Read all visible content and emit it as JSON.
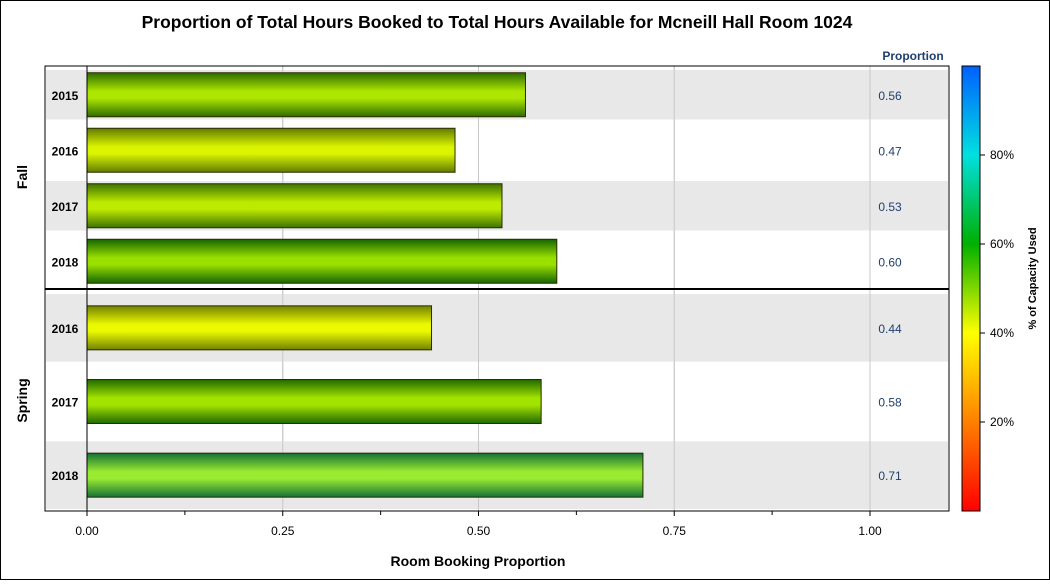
{
  "chart_data": {
    "type": "bar",
    "orientation": "horizontal",
    "title": "Proportion of Total Hours Booked to Total Hours Available for Mcneill Hall Room 1024",
    "xlabel": "Room Booking Proportion",
    "xlim": [
      0,
      1.1
    ],
    "x_ticks": [
      "0.00",
      "0.25",
      "0.50",
      "0.75",
      "1.00"
    ],
    "x_tick_values": [
      0,
      0.25,
      0.5,
      0.75,
      1.0
    ],
    "value_column_header": "Proportion",
    "grid": true,
    "panels": [
      {
        "name": "Fall",
        "categories": [
          "2015",
          "2016",
          "2017",
          "2018"
        ],
        "values": [
          0.56,
          0.47,
          0.53,
          0.6
        ],
        "value_labels": [
          "0.56",
          "0.47",
          "0.53",
          "0.60"
        ]
      },
      {
        "name": "Spring",
        "categories": [
          "2016",
          "2017",
          "2018"
        ],
        "values": [
          0.44,
          0.58,
          0.71
        ],
        "value_labels": [
          "0.44",
          "0.58",
          "0.71"
        ]
      }
    ],
    "colorbar": {
      "label": "% of Capacity Used",
      "range": [
        0,
        100
      ],
      "ticks": [
        "20%",
        "40%",
        "60%",
        "80%"
      ],
      "tick_values": [
        20,
        40,
        60,
        80
      ],
      "colors": [
        "#ff0000",
        "#ff8000",
        "#ffff00",
        "#00b000",
        "#00e0e0",
        "#0060ff"
      ]
    }
  }
}
